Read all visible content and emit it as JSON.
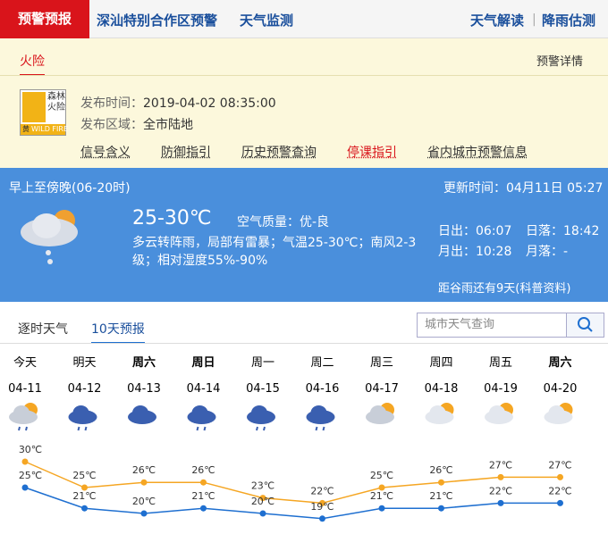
{
  "nav": {
    "active": "预警预报",
    "tabs": [
      "深汕特别合作区预警",
      "天气监测"
    ],
    "right": [
      "天气解读",
      "降雨估测"
    ]
  },
  "warning": {
    "tab": "火险",
    "detail_link": "预警详情",
    "icon_text": [
      "森林",
      "火险"
    ],
    "icon_level": "黄",
    "icon_en": "WILD FIRE",
    "issue_time_label": "发布时间：",
    "issue_time": "2019-04-02 08:35:00",
    "area_label": "发布区域：",
    "area": "全市陆地",
    "links": [
      "信号含义",
      "防御指引",
      "历史预警查询",
      "停课指引",
      "省内城市预警信息"
    ]
  },
  "today": {
    "period": "早上至傍晚(06-20时)",
    "update_label": "更新时间：",
    "update_time": "04月11日 05:27",
    "temp_range": "25-30℃",
    "aqi_label": "空气质量：",
    "aqi": "优-良",
    "description": "多云转阵雨，局部有雷暴；气温25-30℃；南风2-3级；相对湿度55%-90%",
    "sunrise_label": "日出：",
    "sunrise": "06:07",
    "sunset_label": "日落：",
    "sunset": "18:42",
    "moonrise_label": "月出：",
    "moonrise": "10:28",
    "moonset_label": "月落：",
    "moonset": "-",
    "solar_term": "距谷雨还有9天(科普资料)"
  },
  "forecast_tabs": [
    "逐时天气",
    "10天预报"
  ],
  "search_placeholder": "城市天气查询",
  "chart_data": {
    "type": "line",
    "categories": [
      "04-11",
      "04-12",
      "04-13",
      "04-14",
      "04-15",
      "04-16",
      "04-17",
      "04-18",
      "04-19",
      "04-20"
    ],
    "weekdays": [
      "今天",
      "明天",
      "周六",
      "周日",
      "周一",
      "周二",
      "周三",
      "周四",
      "周五",
      "周六"
    ],
    "bold_days": [
      false,
      false,
      true,
      true,
      false,
      false,
      false,
      false,
      false,
      true
    ],
    "series": [
      {
        "color": "#f5a623",
        "values": [
          30,
          25,
          26,
          26,
          23,
          22,
          25,
          26,
          27,
          27
        ],
        "value_labels": [
          "30℃",
          "25℃",
          "26℃",
          "26℃",
          "23℃",
          "22℃",
          "25℃",
          "26℃",
          "27℃",
          "27℃"
        ]
      },
      {
        "color": "#1e6fd0",
        "values": [
          25,
          21,
          20,
          21,
          20,
          19,
          21,
          21,
          22,
          22
        ],
        "value_labels": [
          "25℃",
          "21℃",
          "20℃",
          "21℃",
          "20℃",
          "19℃",
          "21℃",
          "21℃",
          "22℃",
          "22℃"
        ]
      }
    ]
  }
}
